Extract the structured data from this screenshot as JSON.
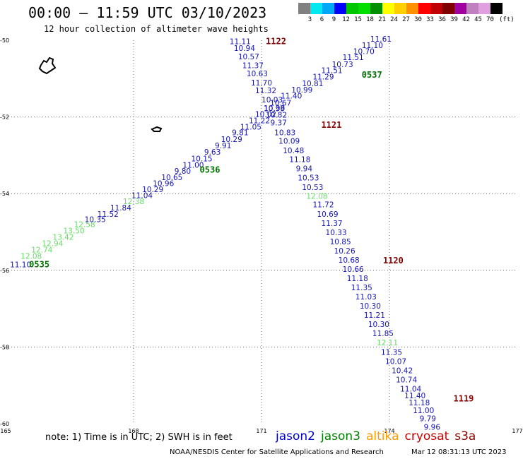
{
  "header": {
    "title": "00:00 – 11:59 UTC 03/10/2023",
    "subtitle": "12 hour collection of altimeter wave heights"
  },
  "legend": {
    "colors": [
      "#808080",
      "#00e8f0",
      "#00a8f8",
      "#0000ff",
      "#00c800",
      "#00e000",
      "#009000",
      "#ffff00",
      "#ffd000",
      "#ff9000",
      "#ff0000",
      "#c00000",
      "#800000",
      "#a000a0",
      "#c080c0",
      "#e0a0e0",
      "#000000"
    ],
    "labels": [
      "3",
      "6",
      "9",
      "12",
      "15",
      "18",
      "21",
      "24",
      "27",
      "30",
      "33",
      "36",
      "39",
      "42",
      "45",
      "70"
    ],
    "unit": "(ft)"
  },
  "footer": {
    "note": "note: 1) Time is in UTC; 2) SWH is in feet",
    "missions": [
      {
        "label": "jason2",
        "color": "#0000cc"
      },
      {
        "label": "jason3",
        "color": "#008000"
      },
      {
        "label": "altika",
        "color": "#ff9900"
      },
      {
        "label": "cryosat",
        "color": "#cc0000"
      },
      {
        "label": "s3a",
        "color": "#880000"
      }
    ],
    "credit": "NOAA/NESDIS Center for Satellite Applications and Research",
    "timestamp": "Mar 12 08:31:13 UTC 2023"
  },
  "chart_data": {
    "type": "scatter",
    "title": "00:00 – 11:59 UTC 03/10/2023",
    "subtitle": "12 hour collection of altimeter wave heights",
    "xlim": [
      165,
      177
    ],
    "ylim": [
      -60,
      -50
    ],
    "x_ticks": [
      165,
      168,
      171,
      174,
      177
    ],
    "x_tick_labels": [
      "165",
      "168",
      "171",
      "174",
      "177"
    ],
    "y_ticks": [
      -50,
      -52,
      -54,
      -56,
      -58,
      -60
    ],
    "y_tick_labels": [
      "-50",
      "-52",
      "-54",
      "-56",
      "-58",
      "-60"
    ],
    "grid": true,
    "colors": {
      "blue": "#1414b4",
      "light_green": "#66dd66",
      "dark_green": "#007000",
      "dark_red": "#880000"
    },
    "tracks": [
      {
        "id": "jason3-ascending",
        "points": [
          {
            "lon": 165.35,
            "lat": -55.92,
            "v": "11.10",
            "c": "blue"
          },
          {
            "lon": 165.6,
            "lat": -55.7,
            "v": "12.08",
            "c": "light_green"
          },
          {
            "lon": 165.85,
            "lat": -55.53,
            "v": "12.74",
            "c": "light_green"
          },
          {
            "lon": 166.1,
            "lat": -55.37,
            "v": "12.94",
            "c": "light_green"
          },
          {
            "lon": 166.35,
            "lat": -55.2,
            "v": "13.42",
            "c": "light_green"
          },
          {
            "lon": 166.6,
            "lat": -55.04,
            "v": "13.50",
            "c": "light_green"
          },
          {
            "lon": 166.85,
            "lat": -54.87,
            "v": "12.58",
            "c": "light_green"
          },
          {
            "lon": 167.1,
            "lat": -54.74,
            "v": "10.35",
            "c": "blue"
          },
          {
            "lon": 167.4,
            "lat": -54.6,
            "v": "11.52",
            "c": "blue"
          },
          {
            "lon": 167.7,
            "lat": -54.44,
            "v": "11.84",
            "c": "blue"
          },
          {
            "lon": 168.0,
            "lat": -54.27,
            "v": "12.38",
            "c": "light_green"
          },
          {
            "lon": 168.2,
            "lat": -54.12,
            "v": "11.04",
            "c": "blue"
          },
          {
            "lon": 168.45,
            "lat": -53.96,
            "v": "10.29",
            "c": "blue"
          },
          {
            "lon": 168.7,
            "lat": -53.8,
            "v": "10.96",
            "c": "blue"
          },
          {
            "lon": 168.9,
            "lat": -53.65,
            "v": "10.65",
            "c": "blue"
          },
          {
            "lon": 169.15,
            "lat": -53.48,
            "v": "9.80",
            "c": "blue"
          },
          {
            "lon": 169.4,
            "lat": -53.32,
            "v": "11.00",
            "c": "blue"
          },
          {
            "lon": 169.6,
            "lat": -53.16,
            "v": "10.15",
            "c": "blue"
          },
          {
            "lon": 169.85,
            "lat": -52.98,
            "v": "9.63",
            "c": "blue"
          },
          {
            "lon": 170.1,
            "lat": -52.82,
            "v": "9.91",
            "c": "blue"
          },
          {
            "lon": 170.3,
            "lat": -52.65,
            "v": "10.29",
            "c": "blue"
          },
          {
            "lon": 170.5,
            "lat": -52.48,
            "v": "9.81",
            "c": "blue"
          },
          {
            "lon": 170.75,
            "lat": -52.33,
            "v": "11.05",
            "c": "blue"
          },
          {
            "lon": 170.95,
            "lat": -52.16,
            "v": "11.22",
            "c": "blue"
          },
          {
            "lon": 171.1,
            "lat": -52.0,
            "v": "10.02",
            "c": "blue"
          },
          {
            "lon": 171.3,
            "lat": -51.85,
            "v": "10.99",
            "c": "blue"
          },
          {
            "lon": 171.45,
            "lat": -51.7,
            "v": "10.67",
            "c": "blue"
          },
          {
            "lon": 171.7,
            "lat": -51.52,
            "v": "11.40",
            "c": "blue"
          },
          {
            "lon": 171.95,
            "lat": -51.36,
            "v": "10.99",
            "c": "blue"
          },
          {
            "lon": 172.2,
            "lat": -51.2,
            "v": "10.81",
            "c": "blue"
          },
          {
            "lon": 172.45,
            "lat": -51.02,
            "v": "11.29",
            "c": "blue"
          },
          {
            "lon": 172.65,
            "lat": -50.86,
            "v": "11.51",
            "c": "blue"
          },
          {
            "lon": 172.9,
            "lat": -50.7,
            "v": "10.73",
            "c": "blue"
          },
          {
            "lon": 173.15,
            "lat": -50.52,
            "v": "11.51",
            "c": "blue"
          },
          {
            "lon": 173.4,
            "lat": -50.36,
            "v": "10.70",
            "c": "blue"
          },
          {
            "lon": 173.6,
            "lat": -50.2,
            "v": "11.10",
            "c": "blue"
          },
          {
            "lon": 173.8,
            "lat": -50.04,
            "v": "11.61",
            "c": "blue"
          }
        ]
      },
      {
        "id": "jason2-descending",
        "points": [
          {
            "lon": 170.5,
            "lat": -50.1,
            "v": "11.11",
            "c": "blue"
          },
          {
            "lon": 170.6,
            "lat": -50.28,
            "v": "10.94",
            "c": "blue"
          },
          {
            "lon": 170.7,
            "lat": -50.5,
            "v": "10.57",
            "c": "blue"
          },
          {
            "lon": 170.8,
            "lat": -50.73,
            "v": "11.37",
            "c": "blue"
          },
          {
            "lon": 170.9,
            "lat": -50.94,
            "v": "10.63",
            "c": "blue"
          },
          {
            "lon": 171.0,
            "lat": -51.18,
            "v": "11.70",
            "c": "blue"
          },
          {
            "lon": 171.1,
            "lat": -51.38,
            "v": "11.32",
            "c": "blue"
          },
          {
            "lon": 171.25,
            "lat": -51.62,
            "v": "10.03",
            "c": "blue"
          },
          {
            "lon": 171.3,
            "lat": -51.84,
            "v": "10.38",
            "c": "blue"
          },
          {
            "lon": 171.35,
            "lat": -52.02,
            "v": "10.82",
            "c": "blue"
          },
          {
            "lon": 171.4,
            "lat": -52.22,
            "v": "9.37",
            "c": "blue"
          },
          {
            "lon": 171.55,
            "lat": -52.48,
            "v": "10.83",
            "c": "blue"
          },
          {
            "lon": 171.65,
            "lat": -52.7,
            "v": "10.09",
            "c": "blue"
          },
          {
            "lon": 171.75,
            "lat": -52.95,
            "v": "10.48",
            "c": "blue"
          },
          {
            "lon": 171.9,
            "lat": -53.18,
            "v": "11.18",
            "c": "blue"
          },
          {
            "lon": 172.0,
            "lat": -53.42,
            "v": "9.94",
            "c": "blue"
          },
          {
            "lon": 172.1,
            "lat": -53.66,
            "v": "10.53",
            "c": "blue"
          },
          {
            "lon": 172.2,
            "lat": -53.9,
            "v": "10.53",
            "c": "blue"
          },
          {
            "lon": 172.3,
            "lat": -54.13,
            "v": "12.08",
            "c": "light_green"
          },
          {
            "lon": 172.45,
            "lat": -54.36,
            "v": "11.72",
            "c": "blue"
          },
          {
            "lon": 172.55,
            "lat": -54.6,
            "v": "10.69",
            "c": "blue"
          },
          {
            "lon": 172.65,
            "lat": -54.84,
            "v": "11.37",
            "c": "blue"
          },
          {
            "lon": 172.75,
            "lat": -55.08,
            "v": "10.33",
            "c": "blue"
          },
          {
            "lon": 172.85,
            "lat": -55.32,
            "v": "10.85",
            "c": "blue"
          },
          {
            "lon": 172.95,
            "lat": -55.56,
            "v": "10.26",
            "c": "blue"
          },
          {
            "lon": 173.05,
            "lat": -55.8,
            "v": "10.68",
            "c": "blue"
          },
          {
            "lon": 173.15,
            "lat": -56.04,
            "v": "10.66",
            "c": "blue"
          },
          {
            "lon": 173.25,
            "lat": -56.28,
            "v": "11.18",
            "c": "blue"
          },
          {
            "lon": 173.35,
            "lat": -56.52,
            "v": "11.35",
            "c": "blue"
          },
          {
            "lon": 173.45,
            "lat": -56.76,
            "v": "11.03",
            "c": "blue"
          },
          {
            "lon": 173.55,
            "lat": -57.0,
            "v": "10.30",
            "c": "blue"
          },
          {
            "lon": 173.65,
            "lat": -57.24,
            "v": "11.21",
            "c": "blue"
          },
          {
            "lon": 173.75,
            "lat": -57.48,
            "v": "10.30",
            "c": "blue"
          },
          {
            "lon": 173.85,
            "lat": -57.72,
            "v": "11.85",
            "c": "blue"
          },
          {
            "lon": 173.95,
            "lat": -57.96,
            "v": "12.11",
            "c": "light_green"
          },
          {
            "lon": 174.05,
            "lat": -58.2,
            "v": "11.35",
            "c": "blue"
          },
          {
            "lon": 174.15,
            "lat": -58.44,
            "v": "10.07",
            "c": "blue"
          },
          {
            "lon": 174.3,
            "lat": -58.68,
            "v": "10.42",
            "c": "blue"
          },
          {
            "lon": 174.4,
            "lat": -58.92,
            "v": "10.74",
            "c": "blue"
          },
          {
            "lon": 174.5,
            "lat": -59.16,
            "v": "11.04",
            "c": "blue"
          },
          {
            "lon": 174.6,
            "lat": -59.34,
            "v": "11.40",
            "c": "blue"
          },
          {
            "lon": 174.7,
            "lat": -59.52,
            "v": "11.18",
            "c": "blue"
          },
          {
            "lon": 174.8,
            "lat": -59.72,
            "v": "11.00",
            "c": "blue"
          },
          {
            "lon": 174.9,
            "lat": -59.94,
            "v": "9.79",
            "c": "blue"
          },
          {
            "lon": 175.0,
            "lat": -60.16,
            "v": "9.96",
            "c": "blue"
          }
        ]
      }
    ],
    "time_labels": [
      {
        "lon": 165.55,
        "lat": -55.92,
        "v": "0535",
        "c": "dark_green"
      },
      {
        "lon": 169.55,
        "lat": -53.45,
        "v": "0536",
        "c": "dark_green"
      },
      {
        "lon": 173.35,
        "lat": -50.98,
        "v": "0537",
        "c": "dark_green"
      },
      {
        "lon": 171.1,
        "lat": -50.1,
        "v": "1122",
        "c": "dark_red"
      },
      {
        "lon": 172.4,
        "lat": -52.28,
        "v": "1121",
        "c": "dark_red"
      },
      {
        "lon": 173.85,
        "lat": -55.82,
        "v": "1120",
        "c": "dark_red"
      },
      {
        "lon": 175.5,
        "lat": -59.42,
        "v": "1119",
        "c": "dark_red"
      }
    ]
  }
}
